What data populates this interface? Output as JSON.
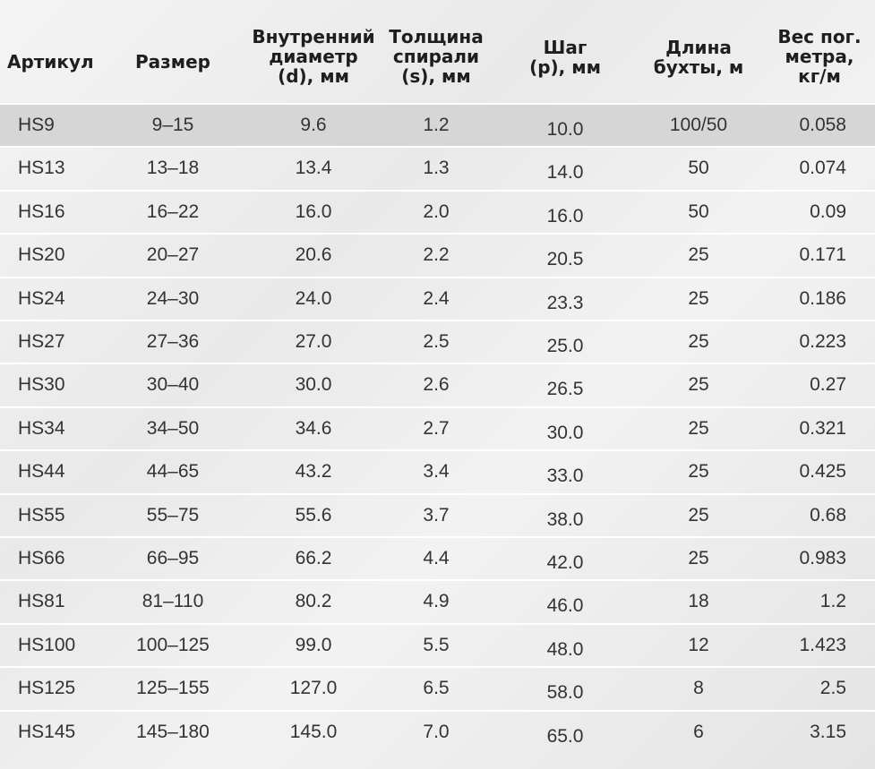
{
  "table": {
    "header": [
      [
        "Артикул"
      ],
      [
        "Размер"
      ],
      [
        "Внутренний",
        "диаметр",
        "(d), мм"
      ],
      [
        "Толщина",
        "спирали",
        "(s), мм"
      ],
      [
        "Шаг",
        "(p), мм"
      ],
      [
        "Длина",
        "бухты, м"
      ],
      [
        "Вес пог.",
        "метра,",
        "кг/м"
      ]
    ],
    "rows": [
      [
        "HS9",
        "9–15",
        "9.6",
        "1.2",
        "10.0",
        "100/50",
        "0.058"
      ],
      [
        "HS13",
        "13–18",
        "13.4",
        "1.3",
        "14.0",
        "50",
        "0.074"
      ],
      [
        "HS16",
        "16–22",
        "16.0",
        "2.0",
        "16.0",
        "50",
        "0.09"
      ],
      [
        "HS20",
        "20–27",
        "20.6",
        "2.2",
        "20.5",
        "25",
        "0.171"
      ],
      [
        "HS24",
        "24–30",
        "24.0",
        "2.4",
        "23.3",
        "25",
        "0.186"
      ],
      [
        "HS27",
        "27–36",
        "27.0",
        "2.5",
        "25.0",
        "25",
        "0.223"
      ],
      [
        "HS30",
        "30–40",
        "30.0",
        "2.6",
        "26.5",
        "25",
        "0.27"
      ],
      [
        "HS34",
        "34–50",
        "34.6",
        "2.7",
        "30.0",
        "25",
        "0.321"
      ],
      [
        "HS44",
        "44–65",
        "43.2",
        "3.4",
        "33.0",
        "25",
        "0.425"
      ],
      [
        "HS55",
        "55–75",
        "55.6",
        "3.7",
        "38.0",
        "25",
        "0.68"
      ],
      [
        "HS66",
        "66–95",
        "66.2",
        "4.4",
        "42.0",
        "25",
        "0.983"
      ],
      [
        "HS81",
        "81–110",
        "80.2",
        "4.9",
        "46.0",
        "18",
        "1.2"
      ],
      [
        "HS100",
        "100–125",
        "99.0",
        "5.5",
        "48.0",
        "12",
        "1.423"
      ],
      [
        "HS125",
        "125–155",
        "127.0",
        "6.5",
        "58.0",
        "8",
        "2.5"
      ],
      [
        "HS145",
        "145–180",
        "145.0",
        "7.0",
        "65.0",
        "6",
        "3.15"
      ]
    ]
  }
}
